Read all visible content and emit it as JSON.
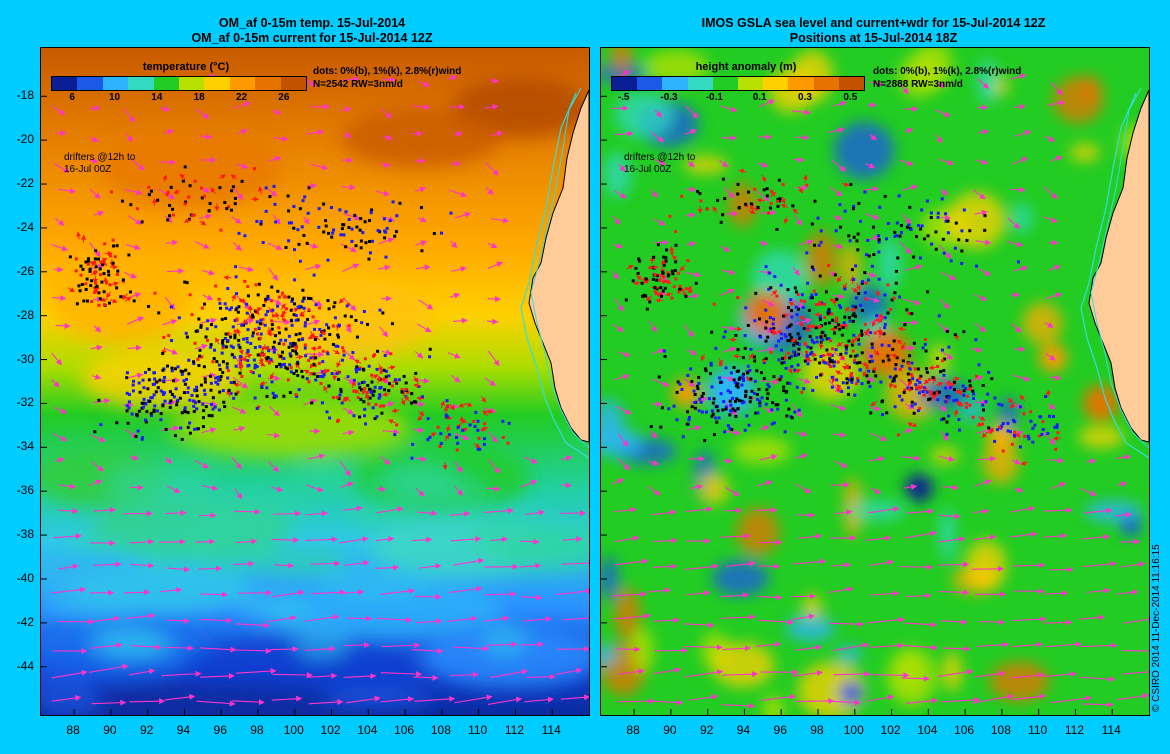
{
  "left_panel": {
    "title_line1": "OM_af 0-15m temp. 15-Jul-2014",
    "title_line2": "OM_af 0-15m current for 15-Jul-2014 12Z",
    "colorbar_title": "temperature (°C)",
    "colorbar_ticks": [
      "6",
      "10",
      "14",
      "18",
      "22",
      "26"
    ],
    "colorbar_colors": [
      "#0a1e96",
      "#1a5ae6",
      "#2eb4ff",
      "#33d9c0",
      "#22cc22",
      "#b8e000",
      "#ffd000",
      "#ff9900",
      "#e87200",
      "#c25200"
    ],
    "dots_legend": "dots: 0%(b), 1%(k), 2.8%(r)wind",
    "stats": "N=2542 RW=3nm/d",
    "drifters_note_line1": "drifters @12h to",
    "drifters_note_line2": "16-Jul 00Z"
  },
  "right_panel": {
    "title_line1": "IMOS GSLA sea level and current+wdr for 15-Jul-2014 12Z",
    "title_line2": "Positions at 15-Jul-2014 18Z",
    "colorbar_title": "height anomaly (m)",
    "colorbar_ticks": [
      "-.5",
      "-0.3",
      "-0.1",
      "0.1",
      "0.3",
      "0.5"
    ],
    "colorbar_colors": [
      "#0a1e96",
      "#1a5ae6",
      "#2eb4ff",
      "#33d9c0",
      "#22cc22",
      "#b8e000",
      "#ffd000",
      "#ff9900",
      "#e87200",
      "#c25200"
    ],
    "dots_legend": "dots: 0%(b), 1%(k), 2.8%(r)wind",
    "stats": "N=2888 RW=3nm/d",
    "drifters_note_line1": "drifters @12h to",
    "drifters_note_line2": "16-Jul 00Z"
  },
  "axes": {
    "lat_labels": [
      "-18",
      "-20",
      "-22",
      "-24",
      "-26",
      "-28",
      "-30",
      "-32",
      "-34",
      "-36",
      "-38",
      "-40",
      "-42",
      "-44"
    ],
    "lon_labels": [
      "88",
      "90",
      "92",
      "94",
      "96",
      "98",
      "100",
      "102",
      "104",
      "106",
      "108",
      "110",
      "112",
      "114"
    ],
    "lon_range": [
      86.2,
      116.0
    ],
    "lat_range": [
      -46.2,
      -15.8
    ]
  },
  "credit": "© CSIRO 2014   11-Dec-2014 11:16:15",
  "colors": {
    "background": "#00ccff",
    "land": "#ffcc99",
    "coast": "#33dddd",
    "vector": "#ff33cc",
    "drifter_blue": "#1a1aff",
    "drifter_black": "#000000",
    "drifter_red": "#ff1a1a"
  }
}
